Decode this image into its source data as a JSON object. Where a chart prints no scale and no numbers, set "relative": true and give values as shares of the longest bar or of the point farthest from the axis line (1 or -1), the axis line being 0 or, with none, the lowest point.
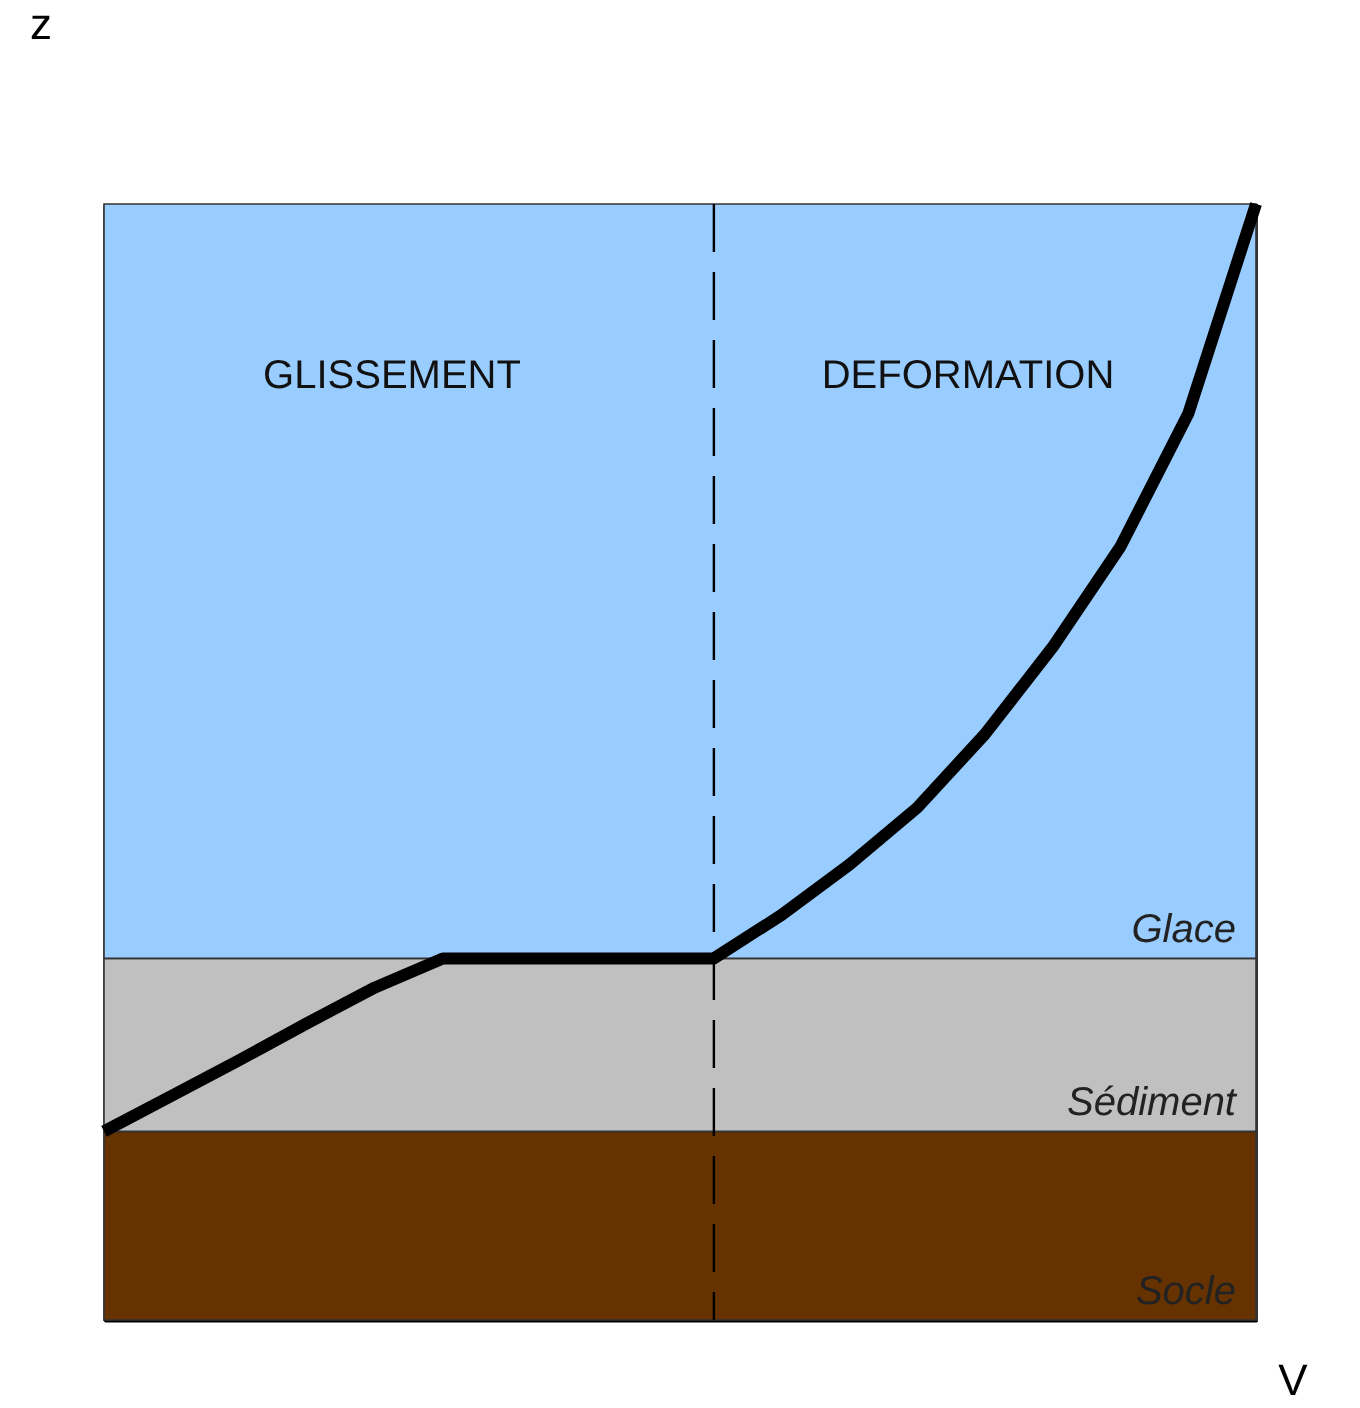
{
  "chart_data": {
    "type": "line",
    "relative": true,
    "xlabel": "V",
    "ylabel": "z",
    "grid": false,
    "categories": [
      null,
      null,
      null,
      null,
      null,
      null,
      null,
      null,
      null,
      null,
      null,
      null,
      null,
      null,
      null,
      null,
      null,
      null
    ],
    "series": [
      {
        "color": "#000000",
        "values": [
          0.169,
          0.201,
          0.233,
          0.266,
          0.298,
          0.324,
          0.324,
          0.324,
          0.324,
          0.324,
          0.363,
          0.408,
          0.459,
          0.525,
          0.603,
          0.693,
          0.812,
          1
        ]
      }
    ],
    "bands": [
      {
        "axis": "y",
        "from": 0,
        "to": 0.169,
        "label": "Socle",
        "color": "#663300"
      },
      {
        "axis": "y",
        "from": 0.169,
        "to": 0.324,
        "label": "Sédiment",
        "color": "#c0c0c0"
      },
      {
        "axis": "y",
        "from": 0.324,
        "to": 1,
        "label": "Glace",
        "color": "#99ccff"
      }
    ],
    "annotations": [
      "GLISSEMENT",
      "DEFORMATION"
    ]
  }
}
